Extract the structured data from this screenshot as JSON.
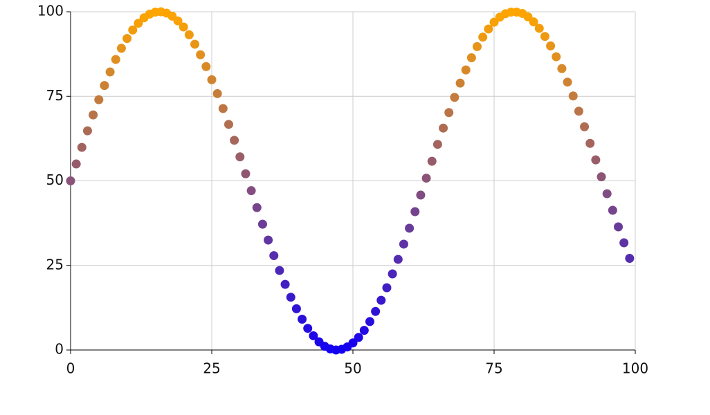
{
  "chart_data": {
    "type": "scatter",
    "x": [
      0,
      1,
      2,
      3,
      4,
      5,
      6,
      7,
      8,
      9,
      10,
      11,
      12,
      13,
      14,
      15,
      16,
      17,
      18,
      19,
      20,
      21,
      22,
      23,
      24,
      25,
      26,
      27,
      28,
      29,
      30,
      31,
      32,
      33,
      34,
      35,
      36,
      37,
      38,
      39,
      40,
      41,
      42,
      43,
      44,
      45,
      46,
      47,
      48,
      49,
      50,
      51,
      52,
      53,
      54,
      55,
      56,
      57,
      58,
      59,
      60,
      61,
      62,
      63,
      64,
      65,
      66,
      67,
      68,
      69,
      70,
      71,
      72,
      73,
      74,
      75,
      76,
      77,
      78,
      79,
      80,
      81,
      82,
      83,
      84,
      85,
      86,
      87,
      88,
      89,
      90,
      91,
      92,
      93,
      94,
      95,
      96,
      97,
      98,
      99
    ],
    "values": [
      50,
      55.0,
      59.9,
      64.8,
      69.5,
      74.0,
      78.2,
      82.2,
      85.9,
      89.2,
      92.1,
      94.6,
      96.6,
      98.2,
      99.3,
      99.9,
      100.0,
      99.6,
      98.7,
      97.3,
      95.5,
      93.2,
      90.4,
      87.3,
      83.8,
      79.9,
      75.8,
      71.4,
      66.7,
      62.0,
      57.1,
      52.1,
      47.1,
      42.1,
      37.2,
      32.5,
      27.9,
      23.5,
      19.4,
      15.6,
      12.2,
      9.1,
      6.4,
      4.2,
      2.4,
      1.1,
      0.3,
      0.0,
      0.2,
      0.9,
      2.1,
      3.7,
      5.8,
      8.4,
      11.4,
      14.7,
      18.4,
      22.5,
      26.8,
      31.3,
      36.0,
      40.9,
      45.8,
      50.8,
      55.8,
      60.8,
      65.6,
      70.2,
      74.7,
      78.9,
      82.8,
      86.4,
      89.7,
      92.5,
      94.9,
      96.9,
      98.4,
      99.4,
      99.9,
      99.9,
      99.5,
      98.5,
      97.0,
      95.1,
      92.7,
      89.9,
      86.7,
      83.2,
      79.2,
      75.1,
      70.6,
      66.0,
      61.1,
      56.2,
      51.2,
      46.2,
      41.3,
      36.4,
      31.7,
      27.1
    ],
    "colormap": [
      "#1400f0",
      "#ffa500"
    ],
    "xlim": [
      0,
      100
    ],
    "xticks": [
      0,
      25,
      50,
      75,
      100
    ],
    "ylim": [
      0,
      100
    ],
    "yticks": [
      0,
      25,
      50,
      75,
      100
    ],
    "grid": true
  }
}
